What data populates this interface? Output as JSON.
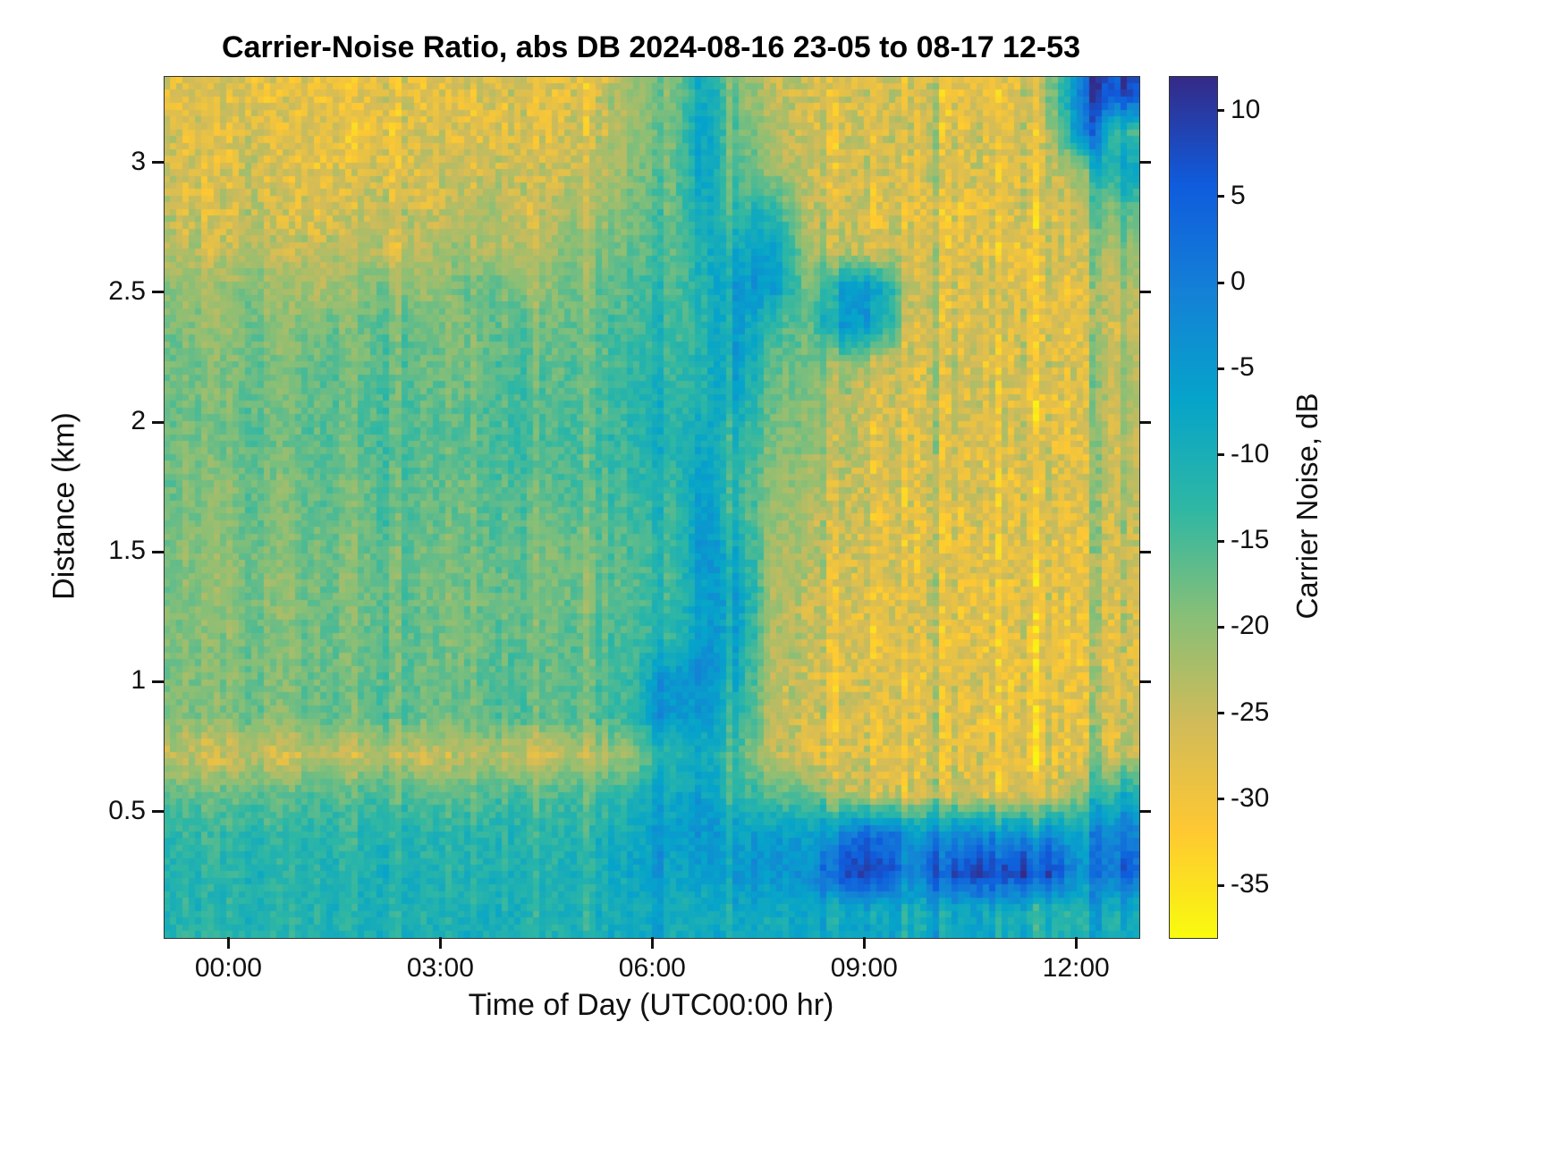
{
  "title": "Carrier-Noise Ratio, abs DB 2024-08-16 23-05 to 08-17 12-53",
  "chart_data": {
    "type": "heatmap",
    "title": "Carrier-Noise Ratio, abs DB 2024-08-16 23-05 to 08-17 12-53",
    "xlabel": "Time of Day (UTC00:00 hr)",
    "ylabel": "Distance (km)",
    "colorbar_label": "Carrier Noise, dB",
    "x_range_hours": [
      -0.9167,
      12.8833
    ],
    "y_range_km": [
      0.0167,
      3.3333
    ],
    "color_axis_db": [
      -38,
      12
    ],
    "grid": "off",
    "legend": "none",
    "x_ticks": [
      {
        "hours": 0,
        "label": "00:00"
      },
      {
        "hours": 3,
        "label": "03:00"
      },
      {
        "hours": 6,
        "label": "06:00"
      },
      {
        "hours": 9,
        "label": "09:00"
      },
      {
        "hours": 12,
        "label": "12:00"
      }
    ],
    "y_ticks": [
      {
        "km": 0.5,
        "label": "0.5"
      },
      {
        "km": 1,
        "label": "1"
      },
      {
        "km": 1.5,
        "label": "1.5"
      },
      {
        "km": 2,
        "label": "2"
      },
      {
        "km": 2.5,
        "label": "2.5"
      },
      {
        "km": 3,
        "label": "3"
      }
    ],
    "colorbar_ticks": [
      {
        "db": 10,
        "label": "10"
      },
      {
        "db": 5,
        "label": "5"
      },
      {
        "db": 0,
        "label": "0"
      },
      {
        "db": -5,
        "label": "-5"
      },
      {
        "db": -10,
        "label": "-10"
      },
      {
        "db": -15,
        "label": "-15"
      },
      {
        "db": -20,
        "label": "-20"
      },
      {
        "db": -25,
        "label": "-25"
      },
      {
        "db": -30,
        "label": "-30"
      },
      {
        "db": -35,
        "label": "-35"
      }
    ],
    "colormap": {
      "name": "parula-reversed",
      "stops": [
        "#352a87",
        "#0f5cdd",
        "#1481d6",
        "#06a4ca",
        "#2eb7a4",
        "#87bf77",
        "#d1bb59",
        "#fec832",
        "#f9fb0e"
      ]
    },
    "x_centers_hours": [
      -0.67,
      -0.18,
      0.31,
      0.8,
      1.3,
      1.79,
      2.28,
      2.77,
      3.27,
      3.76,
      4.25,
      4.74,
      5.24,
      5.73,
      6.22,
      6.71,
      7.21,
      7.7,
      8.19,
      8.68,
      9.18,
      9.67,
      10.16,
      10.65,
      11.15,
      11.64,
      12.13,
      12.62
    ],
    "y_centers_km": [
      3.27,
      3.12,
      2.97,
      2.82,
      2.67,
      2.52,
      2.37,
      2.22,
      2.07,
      1.92,
      1.77,
      1.62,
      1.47,
      1.32,
      1.17,
      1.02,
      0.87,
      0.72,
      0.57,
      0.42,
      0.27,
      0.12
    ],
    "rows_order": "top_to_bottom",
    "values_db": [
      [
        -28,
        -26,
        -29,
        -27,
        -30,
        -28,
        -26,
        -29,
        -27,
        -27,
        -25,
        -28,
        -26,
        -22,
        -20,
        -8,
        -18,
        -24,
        -26,
        -28,
        -29,
        -27,
        -30,
        -28,
        -29,
        -20,
        5,
        8
      ],
      [
        -27,
        -29,
        -26,
        -28,
        -27,
        -30,
        -28,
        -26,
        -29,
        -28,
        -26,
        -27,
        -25,
        -21,
        -19,
        -6,
        -17,
        -22,
        -27,
        -29,
        -28,
        -26,
        -29,
        -27,
        -28,
        -24,
        3,
        -14
      ],
      [
        -26,
        -28,
        -25,
        -27,
        -29,
        -26,
        -28,
        -27,
        -25,
        -26,
        -24,
        -26,
        -23,
        -20,
        -18,
        -7,
        -16,
        -20,
        -26,
        -28,
        -27,
        -29,
        -26,
        -28,
        -29,
        -26,
        -18,
        -8
      ],
      [
        -25,
        -27,
        -24,
        -26,
        -28,
        -25,
        -23,
        -26,
        -24,
        -22,
        -25,
        -23,
        -21,
        -19,
        -17,
        -9,
        -13,
        -11,
        -24,
        -27,
        -29,
        -28,
        -30,
        -29,
        -27,
        -28,
        -22,
        -16
      ],
      [
        -24,
        -26,
        -23,
        -25,
        -24,
        -22,
        -25,
        -23,
        -21,
        -24,
        -22,
        -20,
        -19,
        -18,
        -16,
        -10,
        -9,
        -5,
        -22,
        -26,
        -28,
        -27,
        -29,
        -28,
        -30,
        -27,
        -25,
        -20
      ],
      [
        -20,
        -22,
        -19,
        -21,
        -23,
        -20,
        -18,
        -21,
        -19,
        -17,
        -20,
        -18,
        -17,
        -16,
        -15,
        -11,
        -5,
        -4,
        -20,
        -8,
        -6,
        -26,
        -28,
        -27,
        -29,
        -28,
        -26,
        -22
      ],
      [
        -19,
        -21,
        -18,
        -20,
        -17,
        -19,
        -16,
        -18,
        -20,
        -17,
        -15,
        -18,
        -16,
        -15,
        -14,
        -12,
        -5,
        -14,
        -18,
        -6,
        -8,
        -27,
        -29,
        -28,
        -26,
        -29,
        -27,
        -24
      ],
      [
        -18,
        -20,
        -17,
        -19,
        -16,
        -18,
        -15,
        -17,
        -19,
        -16,
        -14,
        -17,
        -15,
        -14,
        -13,
        -11,
        -6,
        -16,
        -19,
        -22,
        -27,
        -28,
        -26,
        -29,
        -28,
        -27,
        -25,
        -22
      ],
      [
        -18,
        -19,
        -17,
        -18,
        -16,
        -17,
        -15,
        -16,
        -18,
        -15,
        -14,
        -16,
        -15,
        -13,
        -12,
        -10,
        -8,
        -17,
        -20,
        -24,
        -28,
        -27,
        -29,
        -26,
        -28,
        -29,
        -26,
        -23
      ],
      [
        -18,
        -19,
        -16,
        -18,
        -15,
        -17,
        -14,
        -16,
        -17,
        -15,
        -13,
        -15,
        -14,
        -13,
        -12,
        -8,
        -12,
        -18,
        -21,
        -25,
        -29,
        -28,
        -27,
        -29,
        -26,
        -28,
        -27,
        -24
      ],
      [
        -18,
        -20,
        -17,
        -19,
        -16,
        -18,
        -15,
        -17,
        -18,
        -16,
        -14,
        -16,
        -15,
        -14,
        -13,
        -6,
        -13,
        -19,
        -22,
        -26,
        -28,
        -29,
        -27,
        -28,
        -29,
        -27,
        -26,
        -23
      ],
      [
        -19,
        -20,
        -17,
        -19,
        -16,
        -18,
        -15,
        -17,
        -18,
        -16,
        -15,
        -17,
        -16,
        -15,
        -14,
        -5,
        -12,
        -20,
        -23,
        -27,
        -29,
        -28,
        -30,
        -27,
        -29,
        -28,
        -26,
        -24
      ],
      [
        -19,
        -21,
        -18,
        -20,
        -17,
        -19,
        -16,
        -18,
        -19,
        -17,
        -16,
        -18,
        -17,
        -16,
        -15,
        -4,
        -8,
        -21,
        -24,
        -28,
        -29,
        -30,
        -28,
        -29,
        -27,
        -29,
        -27,
        -25
      ],
      [
        -19,
        -21,
        -18,
        -20,
        -17,
        -19,
        -16,
        -18,
        -19,
        -17,
        -16,
        -18,
        -17,
        -16,
        -14,
        -6,
        -5,
        -22,
        -25,
        -28,
        -30,
        -29,
        -28,
        -30,
        -29,
        -28,
        -27,
        -25
      ],
      [
        -19,
        -20,
        -18,
        -19,
        -17,
        -18,
        -16,
        -17,
        -19,
        -17,
        -16,
        -17,
        -16,
        -15,
        -13,
        -5,
        -7,
        -22,
        -25,
        -29,
        -30,
        -28,
        -29,
        -30,
        -28,
        -29,
        -27,
        -26
      ],
      [
        -19,
        -20,
        -18,
        -19,
        -17,
        -18,
        -16,
        -17,
        -18,
        -16,
        -15,
        -17,
        -16,
        -14,
        -4,
        -3,
        -9,
        -23,
        -26,
        -29,
        -28,
        -30,
        -29,
        -28,
        -30,
        -29,
        -28,
        -26
      ],
      [
        -19,
        -20,
        -17,
        -19,
        -16,
        -18,
        -15,
        -17,
        -18,
        -16,
        -15,
        -16,
        -15,
        -13,
        -4,
        -5,
        -11,
        -23,
        -26,
        -28,
        -30,
        -29,
        -28,
        -30,
        -29,
        -28,
        -27,
        -25
      ],
      [
        -25,
        -27,
        -24,
        -26,
        -23,
        -25,
        -22,
        -26,
        -24,
        -23,
        -25,
        -24,
        -22,
        -21,
        -12,
        -9,
        -14,
        -24,
        -27,
        -29,
        -28,
        -30,
        -29,
        -28,
        -30,
        -29,
        -26,
        -24
      ],
      [
        -17,
        -18,
        -16,
        -17,
        -15,
        -16,
        -14,
        -16,
        -17,
        -15,
        -14,
        -15,
        -14,
        -13,
        -8,
        -6,
        -12,
        -16,
        -18,
        -25,
        -27,
        -28,
        -26,
        -27,
        -28,
        -26,
        -18,
        -10
      ],
      [
        -13,
        -14,
        -12,
        -13,
        -12,
        -13,
        -11,
        -12,
        -13,
        -12,
        -11,
        -12,
        -11,
        -10,
        -6,
        -4,
        -7,
        -5,
        -8,
        -3,
        2,
        -6,
        -4,
        -3,
        -5,
        -4,
        -6,
        0
      ],
      [
        -12,
        -13,
        -11,
        -12,
        -11,
        -12,
        -10,
        -11,
        -12,
        -11,
        -10,
        -11,
        -10,
        -8,
        -7,
        -6,
        -5,
        -3,
        -4,
        6,
        8,
        -2,
        5,
        9,
        8,
        7,
        -3,
        4
      ],
      [
        -12,
        -12,
        -11,
        -12,
        -11,
        -11,
        -10,
        -11,
        -11,
        -10,
        -10,
        -11,
        -10,
        -10,
        -9,
        -9,
        -8,
        -9,
        -8,
        -10,
        -9,
        -11,
        -10,
        -9,
        -10,
        -11,
        -10,
        -9
      ]
    ],
    "stripes": [
      {
        "t_hours": 2.35,
        "delta_db": -4
      },
      {
        "t_hours": 4.3,
        "delta_db": -5
      },
      {
        "t_hours": 5.05,
        "delta_db": -4
      },
      {
        "t_hours": 9.97,
        "delta_db": 9
      },
      {
        "t_hours": 11.2,
        "delta_db": 6
      },
      {
        "t_hours": 12.27,
        "delta_db": 8
      }
    ],
    "noise_db": {
      "base_amplitude": 2.4,
      "speckle_threshold": -24,
      "speckle_amplitude": 4.2,
      "column_jitter_left": 1.3,
      "column_jitter_right": 3.2,
      "column_jitter_split_hours": 8.3
    }
  }
}
